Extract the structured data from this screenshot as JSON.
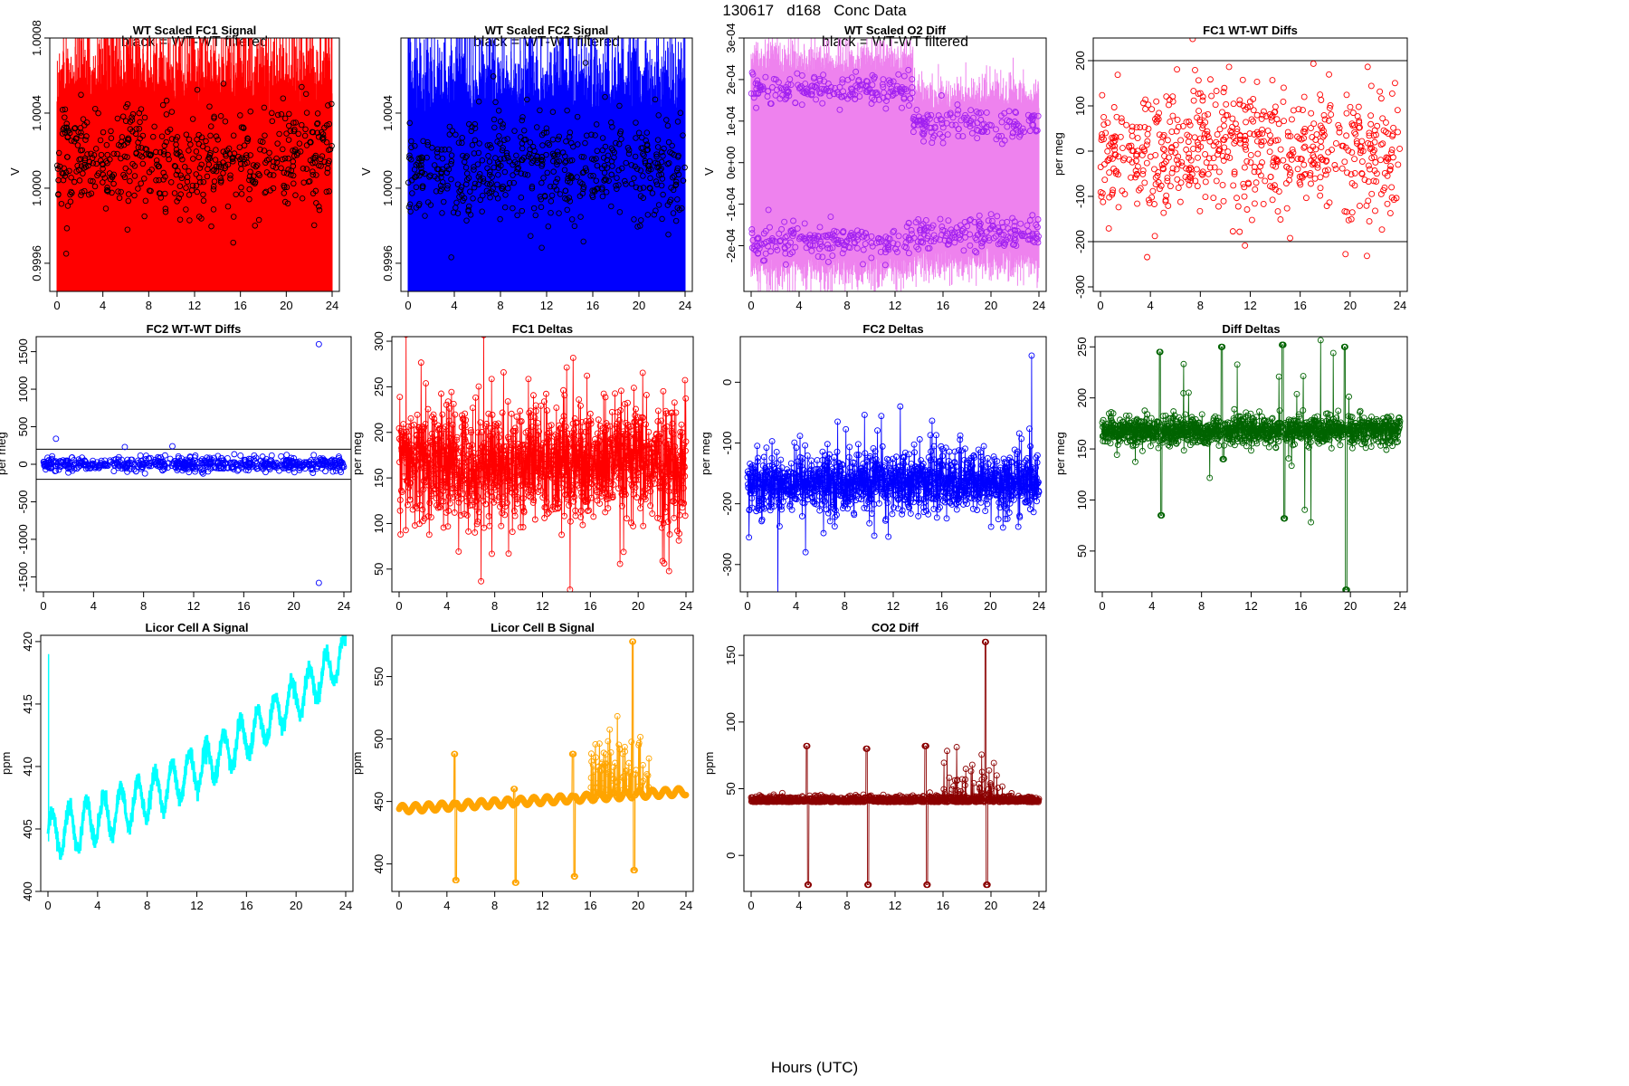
{
  "page": {
    "title": "130617   d168   Conc Data",
    "xlabel": "Hours (UTC)"
  },
  "chart_data": [
    {
      "id": "p1",
      "type": "line",
      "title": "WT Scaled FC1 Signal",
      "subtitle": "black = WT-WT filtered",
      "ylabel": "V",
      "color": "#ff0000",
      "overlay_color": "#000000",
      "xlim": [
        0,
        24
      ],
      "ylim": [
        0.99945,
        1.0008
      ],
      "xticks": [
        0,
        4,
        8,
        12,
        16,
        20,
        24
      ],
      "yticks": [
        0.9996,
        1.0,
        1.0004,
        1.0008
      ],
      "ytick_labels": [
        "0.9996",
        "1.0000",
        "1.0004",
        "1.0008"
      ],
      "style": "noise_band",
      "baseline": 1.00015,
      "band_lo": 0.99945,
      "band_hi": 1.0004,
      "spike_hi": 1.0008
    },
    {
      "id": "p2",
      "type": "line",
      "title": "WT Scaled FC2 Signal",
      "subtitle": "black = WT-WT filtered",
      "ylabel": "V",
      "color": "#0000ff",
      "overlay_color": "#000000",
      "xlim": [
        0,
        24
      ],
      "ylim": [
        0.99945,
        1.0008
      ],
      "xticks": [
        0,
        4,
        8,
        12,
        16,
        20,
        24
      ],
      "yticks": [
        0.9996,
        1.0,
        1.0004
      ],
      "ytick_labels": [
        "0.9996",
        "1.0000",
        "1.0004"
      ],
      "style": "noise_band",
      "baseline": 1.0001,
      "band_lo": 0.99945,
      "band_hi": 1.00035,
      "spike_hi": 1.0008
    },
    {
      "id": "p3",
      "type": "line",
      "title": "WT Scaled O2 Diff",
      "subtitle": "black = WT-WT filtered",
      "ylabel": "V",
      "color": "#ee82ee",
      "overlay_color": "#a020f0",
      "xlim": [
        0,
        24
      ],
      "ylim": [
        -0.00031,
        0.0003
      ],
      "xticks": [
        0,
        4,
        8,
        12,
        16,
        20,
        24
      ],
      "yticks": [
        -0.0002,
        -0.0001,
        0,
        0.0001,
        0.0002,
        0.0003
      ],
      "ytick_labels": [
        "-2e-04",
        "-1e-04",
        "0e+00",
        "1e-04",
        "2e-04",
        "3e-04"
      ],
      "style": "two_bands",
      "upper_level": 0.000175,
      "lower_level": -0.000185,
      "jump_hour": 13.5,
      "upper_level2": 9e-05,
      "lower_level2": -0.00017
    },
    {
      "id": "p4",
      "type": "scatter",
      "title": "FC1 WT-WT Diffs",
      "ylabel": "per meg",
      "color": "#ff0000",
      "xlim": [
        0,
        24
      ],
      "ylim": [
        -310,
        250
      ],
      "xticks": [
        0,
        4,
        8,
        12,
        16,
        20,
        24
      ],
      "yticks": [
        -300,
        -200,
        -100,
        0,
        100,
        200
      ],
      "ytick_labels": [
        "-300",
        "-200",
        "-100",
        "0",
        "100",
        "200"
      ],
      "hlines": [
        200,
        -200
      ],
      "style": "scatter",
      "center": 0,
      "spread": 75
    },
    {
      "id": "p5",
      "type": "scatter",
      "title": "FC2 WT-WT Diffs",
      "ylabel": "per meg",
      "color": "#0000ff",
      "xlim": [
        0,
        24
      ],
      "ylim": [
        -1700,
        1700
      ],
      "xticks": [
        0,
        4,
        8,
        12,
        16,
        20,
        24
      ],
      "yticks": [
        -1500,
        -1000,
        -500,
        0,
        500,
        1000,
        1500
      ],
      "ytick_labels": [
        "-1500",
        "-1000",
        "-500",
        "0",
        "500",
        "1000",
        "1500"
      ],
      "hlines": [
        200,
        -200
      ],
      "style": "scatter",
      "center": 0,
      "spread": 45,
      "outliers": [
        [
          22,
          1600
        ],
        [
          22,
          -1580
        ],
        [
          1,
          340
        ],
        [
          6.5,
          230
        ],
        [
          10.3,
          240
        ]
      ]
    },
    {
      "id": "p6",
      "type": "line",
      "title": "FC1 Deltas",
      "ylabel": "per meg",
      "color": "#ff0000",
      "xlim": [
        0,
        24
      ],
      "ylim": [
        25,
        305
      ],
      "xticks": [
        0,
        4,
        8,
        12,
        16,
        20,
        24
      ],
      "yticks": [
        50,
        100,
        150,
        200,
        250,
        300
      ],
      "ytick_labels": [
        "50",
        "100",
        "150",
        "200",
        "250",
        "300"
      ],
      "style": "noisy_line",
      "center": 165,
      "spread": 32
    },
    {
      "id": "p7",
      "type": "line",
      "title": "FC2 Deltas",
      "ylabel": "per meg",
      "color": "#0000ff",
      "xlim": [
        0,
        24
      ],
      "ylim": [
        -345,
        75
      ],
      "xticks": [
        0,
        4,
        8,
        12,
        16,
        20,
        24
      ],
      "yticks": [
        -300,
        -200,
        -100,
        0
      ],
      "ytick_labels": [
        "-300",
        "-200",
        "-100",
        "0"
      ],
      "style": "noisy_line",
      "center": -165,
      "spread": 24
    },
    {
      "id": "p8",
      "type": "line",
      "title": "Diff Deltas",
      "ylabel": "per meg",
      "color": "#006400",
      "xlim": [
        0,
        24
      ],
      "ylim": [
        10,
        260
      ],
      "xticks": [
        0,
        4,
        8,
        12,
        16,
        20,
        24
      ],
      "yticks": [
        50,
        100,
        150,
        200,
        250
      ],
      "ytick_labels": [
        "50",
        "100",
        "150",
        "200",
        "250"
      ],
      "style": "diff_deltas",
      "center": 168,
      "spread": 7,
      "events": [
        [
          4.7,
          245,
          85
        ],
        [
          9.7,
          250,
          140
        ],
        [
          14.6,
          252,
          82
        ],
        [
          19.6,
          250,
          12
        ]
      ]
    },
    {
      "id": "p9",
      "type": "line",
      "title": "Licor Cell A Signal",
      "ylabel": "ppm",
      "color": "#00ffff",
      "xlim": [
        0,
        24
      ],
      "ylim": [
        400,
        420.5
      ],
      "xticks": [
        0,
        4,
        8,
        12,
        16,
        20,
        24
      ],
      "yticks": [
        400,
        405,
        410,
        415,
        420
      ],
      "ytick_labels": [
        "400",
        "405",
        "410",
        "415",
        "420"
      ],
      "style": "oscillation",
      "start": 404.5,
      "end": 419,
      "amp_start": 1.8,
      "amp_end": 1.5,
      "period": 1.38
    },
    {
      "id": "p10",
      "type": "line",
      "title": "Licor Cell B Signal",
      "ylabel": "ppm",
      "color": "#ffa500",
      "xlim": [
        0,
        24
      ],
      "ylim": [
        378,
        583
      ],
      "xticks": [
        0,
        4,
        8,
        12,
        16,
        20,
        24
      ],
      "yticks": [
        400,
        450,
        500,
        550
      ],
      "ytick_labels": [
        "400",
        "450",
        "500",
        "550"
      ],
      "style": "licor_b",
      "start": 444,
      "end": 458,
      "events": [
        [
          4.7,
          488,
          387
        ],
        [
          9.7,
          460,
          385
        ],
        [
          14.6,
          488,
          390
        ],
        [
          19.6,
          578,
          395
        ]
      ]
    },
    {
      "id": "p11",
      "type": "line",
      "title": "CO2 Diff",
      "ylabel": "ppm",
      "color": "#8b0000",
      "xlim": [
        0,
        24
      ],
      "ylim": [
        -27,
        165
      ],
      "xticks": [
        0,
        4,
        8,
        12,
        16,
        20,
        24
      ],
      "yticks": [
        0,
        50,
        100,
        150
      ],
      "ytick_labels": [
        "0",
        "50",
        "100",
        "150"
      ],
      "style": "co2_diff",
      "center": 40,
      "events": [
        [
          4.7,
          82,
          -22
        ],
        [
          9.7,
          80,
          -22
        ],
        [
          14.6,
          82,
          -22
        ],
        [
          19.6,
          160,
          -22
        ]
      ]
    }
  ]
}
